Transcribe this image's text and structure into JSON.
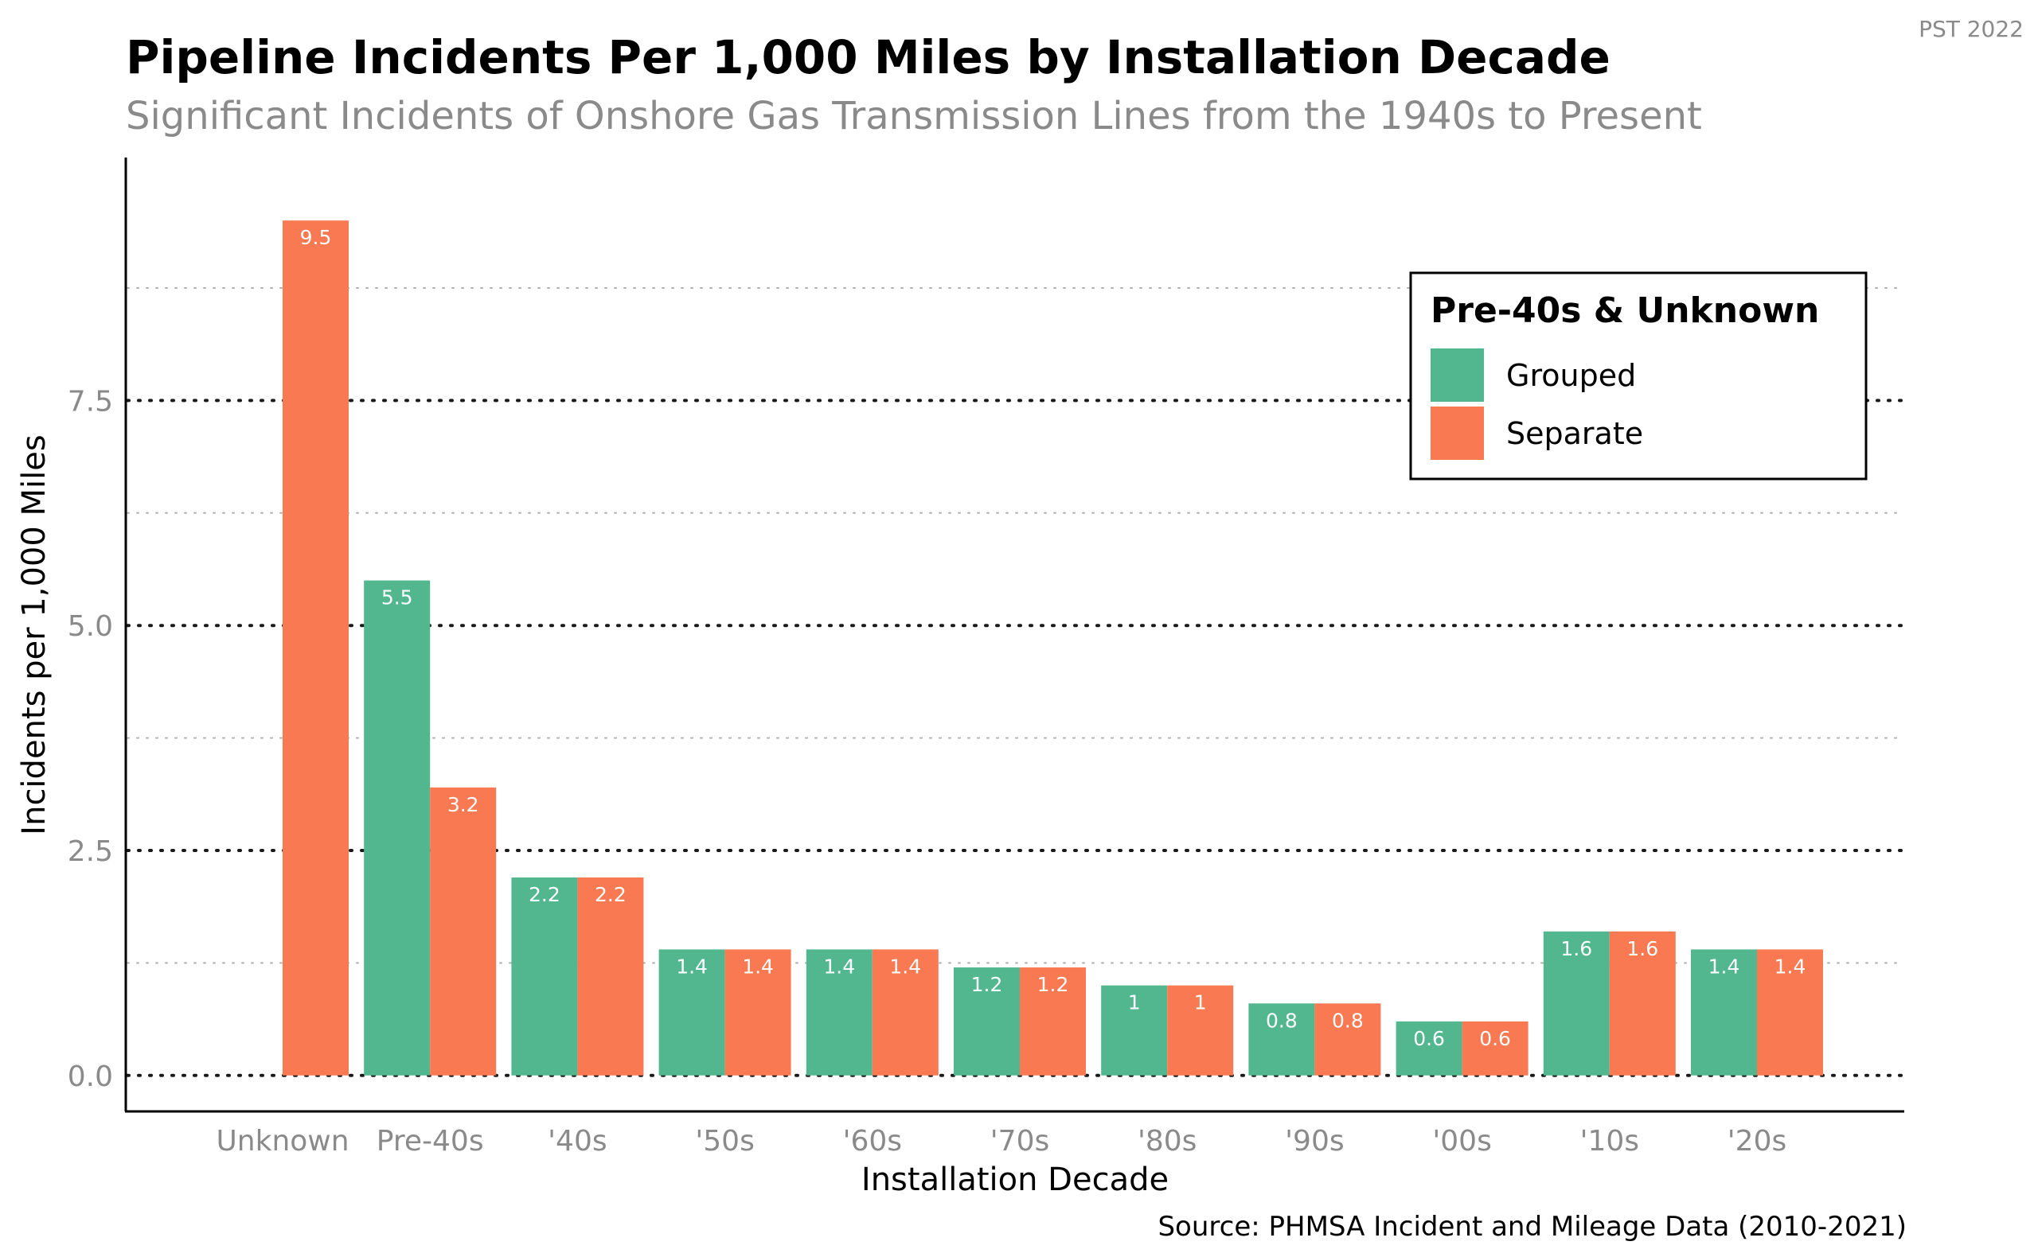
{
  "watermark": "PST 2022",
  "title": "Pipeline Incidents Per 1,000 Miles by Installation Decade",
  "subtitle": "Significant Incidents of Onshore Gas Transmission Lines from the 1940s to Present",
  "source": "Source: PHMSA Incident and Mileage Data (2010-2021)",
  "chart_data": {
    "type": "bar",
    "xlabel": "Installation Decade",
    "ylabel": "Incidents per 1,000 Miles",
    "ylim": [
      -0.4,
      10.2
    ],
    "yticks": [
      "0.0",
      "2.5",
      "5.0",
      "7.5"
    ],
    "grid": true,
    "legend": {
      "title": "Pre-40s & Unknown",
      "placement": "top-right"
    },
    "categories": [
      "Unknown",
      "Pre-40s",
      "'40s",
      "'50s",
      "'60s",
      "'70s",
      "'80s",
      "'90s",
      "'00s",
      "'10s",
      "'20s"
    ],
    "series": [
      {
        "name": "Grouped",
        "color": "#52b78f",
        "values": [
          null,
          5.5,
          2.2,
          1.4,
          1.4,
          1.2,
          1,
          0.8,
          0.6,
          1.6,
          1.4
        ],
        "labels": [
          null,
          "5.5",
          "2.2",
          "1.4",
          "1.4",
          "1.2",
          "1",
          "0.8",
          "0.6",
          "1.6",
          "1.4"
        ]
      },
      {
        "name": "Separate",
        "color": "#f97a52",
        "values": [
          9.5,
          3.2,
          2.2,
          1.4,
          1.4,
          1.2,
          1,
          0.8,
          0.6,
          1.6,
          1.4
        ],
        "labels": [
          "9.5",
          "3.2",
          "2.2",
          "1.4",
          "1.4",
          "1.2",
          "1",
          "0.8",
          "0.6",
          "1.6",
          "1.4"
        ]
      }
    ]
  }
}
